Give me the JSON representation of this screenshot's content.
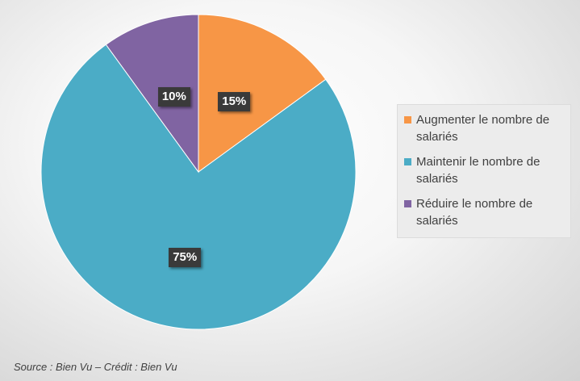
{
  "chart_data": {
    "type": "pie",
    "title": "",
    "categories": [
      "Augmenter le nombre de salariés",
      "Maintenir le nombre de salariés",
      "Réduire le nombre de salariés"
    ],
    "values": [
      15,
      75,
      10
    ],
    "value_labels": [
      "15%",
      "75%",
      "10%"
    ],
    "colors": [
      "#f79646",
      "#4bacc6",
      "#8064a2"
    ],
    "start": "12 o'clock",
    "direction": "clockwise",
    "legend_position": "right"
  },
  "legend": {
    "items": [
      {
        "label": "Augmenter le nombre de salariés",
        "color": "#f79646"
      },
      {
        "label": "Maintenir le nombre de salariés",
        "color": "#4bacc6"
      },
      {
        "label": "Réduire le nombre de salariés",
        "color": "#8064a2"
      }
    ]
  },
  "source": "Source : Bien Vu – Crédit : Bien Vu"
}
